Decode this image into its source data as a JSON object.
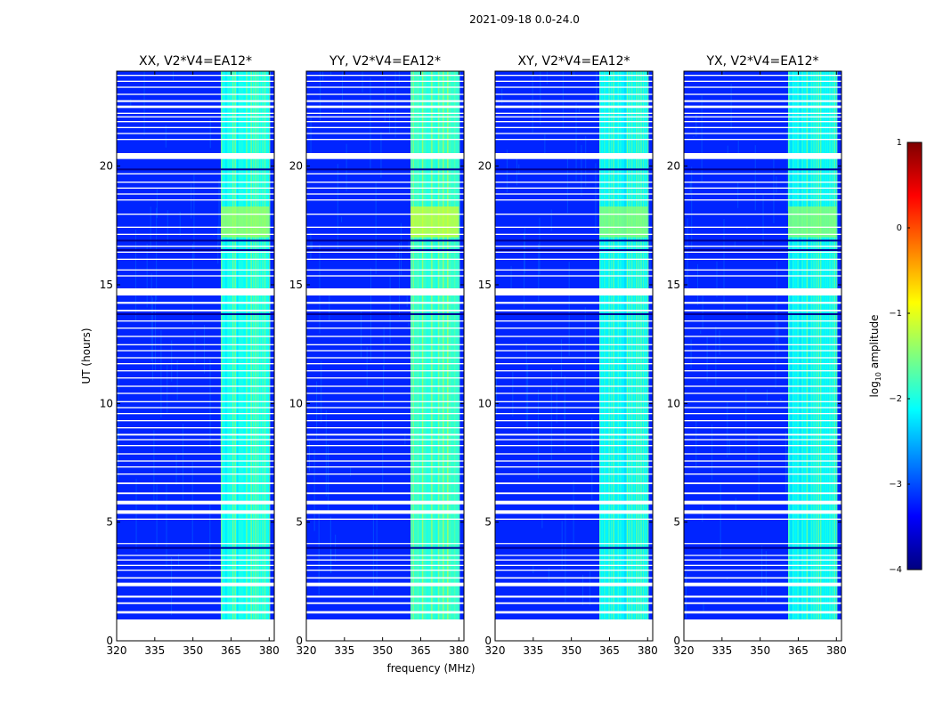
{
  "chart_data": {
    "type": "heatmap",
    "suptitle": "2021-09-18 0.0-24.0",
    "xlabel": "frequency (MHz)",
    "ylabel": "UT (hours)",
    "xlim": [
      320,
      382
    ],
    "ylim": [
      0,
      24
    ],
    "xticks": [
      "320",
      "335",
      "350",
      "365",
      "380"
    ],
    "xtick_values": [
      320,
      335,
      350,
      365,
      380
    ],
    "yticks": [
      "0",
      "5",
      "10",
      "15",
      "20"
    ],
    "ytick_values": [
      0,
      5,
      10,
      15,
      20
    ],
    "colorbar": {
      "label": "log10 amplitude",
      "label_main": "log",
      "label_sub": "10",
      "label_rest": " amplitude",
      "range": [
        -4,
        1
      ],
      "ticks": [
        "1",
        "0",
        "−1",
        "−2",
        "−3",
        "−4"
      ],
      "tick_values": [
        1,
        0,
        -1,
        -2,
        -3,
        -4
      ],
      "colormap": [
        "#00007f",
        "#0000ff",
        "#007fff",
        "#00ffff",
        "#7fff7f",
        "#ffff00",
        "#ff7f00",
        "#ff0000",
        "#7f0000"
      ]
    },
    "background_level": -3.2,
    "rfi_band_mhz": [
      361,
      380
    ],
    "rfi_level": -1.9,
    "rfi_strong_interval_hours": [
      17.0,
      18.3
    ],
    "data_start_hours": 0.9,
    "flagged_gap_hours": [
      [
        0,
        0.9
      ],
      [
        1.15,
        1.25
      ],
      [
        1.55,
        1.62
      ],
      [
        1.82,
        1.9
      ],
      [
        2.3,
        2.45
      ],
      [
        2.62,
        2.68
      ],
      [
        2.95,
        3.0
      ],
      [
        3.15,
        3.2
      ],
      [
        3.38,
        3.43
      ],
      [
        3.58,
        3.62
      ],
      [
        4.08,
        4.12
      ],
      [
        5.1,
        5.15
      ],
      [
        5.35,
        5.5
      ],
      [
        5.75,
        5.9
      ],
      [
        6.18,
        6.25
      ],
      [
        6.6,
        6.67
      ],
      [
        7.0,
        7.05
      ],
      [
        7.3,
        7.35
      ],
      [
        7.55,
        7.6
      ],
      [
        7.85,
        7.9
      ],
      [
        8.2,
        8.25
      ],
      [
        8.45,
        8.5
      ],
      [
        8.65,
        8.72
      ],
      [
        8.95,
        9.0
      ],
      [
        9.25,
        9.3
      ],
      [
        9.55,
        9.6
      ],
      [
        9.8,
        9.85
      ],
      [
        10.05,
        10.1
      ],
      [
        10.4,
        10.45
      ],
      [
        10.7,
        10.75
      ],
      [
        11.05,
        11.1
      ],
      [
        11.35,
        11.4
      ],
      [
        11.65,
        11.7
      ],
      [
        11.9,
        11.95
      ],
      [
        12.2,
        12.25
      ],
      [
        12.45,
        12.5
      ],
      [
        12.8,
        12.85
      ],
      [
        13.15,
        13.2
      ],
      [
        13.45,
        13.5
      ],
      [
        13.88,
        13.95
      ],
      [
        14.2,
        14.28
      ],
      [
        14.55,
        14.85
      ],
      [
        15.35,
        15.4
      ],
      [
        15.6,
        15.65
      ],
      [
        16.05,
        16.1
      ],
      [
        16.35,
        16.4
      ],
      [
        16.6,
        16.65
      ],
      [
        17.1,
        17.15
      ],
      [
        17.4,
        17.45
      ],
      [
        17.95,
        18.0
      ],
      [
        18.55,
        18.6
      ],
      [
        18.8,
        18.85
      ],
      [
        19.05,
        19.1
      ],
      [
        19.3,
        19.35
      ],
      [
        19.65,
        19.7
      ],
      [
        20.3,
        20.55
      ],
      [
        21.1,
        21.15
      ],
      [
        21.35,
        21.4
      ],
      [
        21.6,
        21.65
      ],
      [
        21.85,
        21.9
      ],
      [
        22.05,
        22.1
      ],
      [
        22.2,
        22.25
      ],
      [
        22.45,
        22.55
      ],
      [
        22.7,
        22.78
      ],
      [
        23.0,
        23.05
      ],
      [
        23.3,
        23.35
      ],
      [
        23.55,
        23.6
      ],
      [
        23.8,
        23.85
      ]
    ],
    "panels": [
      {
        "title": "XX, V2*V4=EA12*",
        "rfi_level": -1.8
      },
      {
        "title": "YY, V2*V4=EA12*",
        "rfi_level": -1.6
      },
      {
        "title": "XY, V2*V4=EA12*",
        "rfi_level": -1.9
      },
      {
        "title": "YX, V2*V4=EA12*",
        "rfi_level": -1.9
      }
    ]
  }
}
